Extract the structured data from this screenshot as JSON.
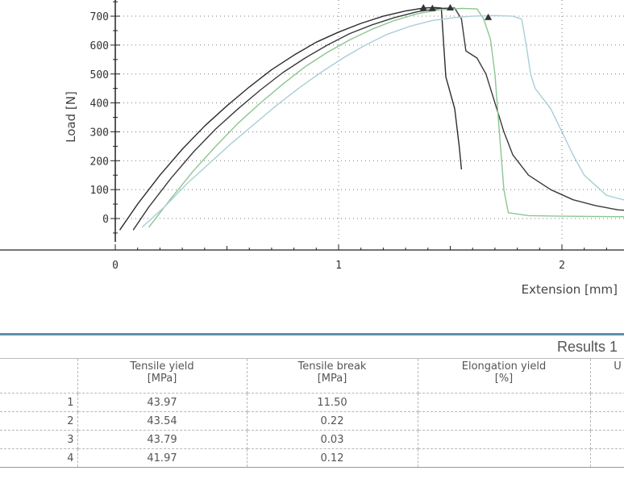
{
  "chart_data": {
    "type": "line",
    "title": "",
    "xlabel": "Extension [mm]",
    "ylabel": "Load [N]",
    "xlim": [
      0,
      2.3
    ],
    "ylim": [
      -90,
      760
    ],
    "x_ticks": [
      "0",
      "1",
      "2"
    ],
    "y_ticks": [
      "0",
      "100",
      "200",
      "300",
      "400",
      "500",
      "600",
      "700"
    ],
    "grid": true,
    "series": [
      {
        "name": "1",
        "color": "#2c2c2c",
        "points": [
          [
            0.02,
            -40
          ],
          [
            0.1,
            50
          ],
          [
            0.2,
            150
          ],
          [
            0.3,
            240
          ],
          [
            0.4,
            320
          ],
          [
            0.5,
            390
          ],
          [
            0.6,
            455
          ],
          [
            0.7,
            515
          ],
          [
            0.8,
            565
          ],
          [
            0.9,
            610
          ],
          [
            1.0,
            645
          ],
          [
            1.1,
            675
          ],
          [
            1.2,
            700
          ],
          [
            1.3,
            718
          ],
          [
            1.38,
            728
          ],
          [
            1.43,
            730
          ],
          [
            1.46,
            728
          ],
          [
            1.48,
            490
          ],
          [
            1.52,
            380
          ],
          [
            1.54,
            250
          ],
          [
            1.55,
            170
          ]
        ]
      },
      {
        "name": "2",
        "color": "#3a3a3a",
        "points": [
          [
            0.08,
            -40
          ],
          [
            0.15,
            40
          ],
          [
            0.25,
            140
          ],
          [
            0.35,
            230
          ],
          [
            0.45,
            310
          ],
          [
            0.55,
            380
          ],
          [
            0.65,
            445
          ],
          [
            0.75,
            505
          ],
          [
            0.85,
            555
          ],
          [
            0.95,
            600
          ],
          [
            1.05,
            640
          ],
          [
            1.15,
            670
          ],
          [
            1.25,
            695
          ],
          [
            1.35,
            715
          ],
          [
            1.45,
            727
          ],
          [
            1.52,
            728
          ],
          [
            1.55,
            690
          ],
          [
            1.57,
            580
          ],
          [
            1.62,
            555
          ],
          [
            1.66,
            500
          ],
          [
            1.7,
            400
          ],
          [
            1.74,
            300
          ],
          [
            1.78,
            220
          ],
          [
            1.85,
            150
          ],
          [
            1.95,
            100
          ],
          [
            2.05,
            65
          ],
          [
            2.15,
            45
          ],
          [
            2.25,
            30
          ],
          [
            2.3,
            28
          ]
        ]
      },
      {
        "name": "3",
        "color": "#8cc592",
        "points": [
          [
            0.15,
            -30
          ],
          [
            0.25,
            70
          ],
          [
            0.35,
            165
          ],
          [
            0.45,
            250
          ],
          [
            0.55,
            330
          ],
          [
            0.65,
            400
          ],
          [
            0.75,
            465
          ],
          [
            0.85,
            525
          ],
          [
            0.95,
            575
          ],
          [
            1.05,
            618
          ],
          [
            1.15,
            655
          ],
          [
            1.25,
            685
          ],
          [
            1.35,
            708
          ],
          [
            1.45,
            722
          ],
          [
            1.55,
            727
          ],
          [
            1.62,
            725
          ],
          [
            1.65,
            690
          ],
          [
            1.68,
            620
          ],
          [
            1.7,
            500
          ],
          [
            1.72,
            300
          ],
          [
            1.74,
            100
          ],
          [
            1.76,
            20
          ],
          [
            1.85,
            10
          ],
          [
            2.0,
            8
          ],
          [
            2.3,
            6
          ]
        ]
      },
      {
        "name": "4",
        "color": "#a9cfd6",
        "points": [
          [
            0.12,
            -30
          ],
          [
            0.22,
            40
          ],
          [
            0.32,
            120
          ],
          [
            0.42,
            190
          ],
          [
            0.52,
            260
          ],
          [
            0.62,
            325
          ],
          [
            0.72,
            390
          ],
          [
            0.82,
            450
          ],
          [
            0.92,
            505
          ],
          [
            1.02,
            555
          ],
          [
            1.12,
            600
          ],
          [
            1.22,
            638
          ],
          [
            1.32,
            665
          ],
          [
            1.42,
            685
          ],
          [
            1.52,
            695
          ],
          [
            1.6,
            700
          ],
          [
            1.7,
            702
          ],
          [
            1.78,
            700
          ],
          [
            1.82,
            690
          ],
          [
            1.84,
            600
          ],
          [
            1.86,
            500
          ],
          [
            1.88,
            450
          ],
          [
            1.95,
            380
          ],
          [
            2.0,
            300
          ],
          [
            2.05,
            220
          ],
          [
            2.1,
            150
          ],
          [
            2.2,
            80
          ],
          [
            2.3,
            60
          ]
        ]
      }
    ],
    "markers": [
      {
        "x": 1.38,
        "y": 728,
        "color": "#333333"
      },
      {
        "x": 1.42,
        "y": 726,
        "color": "#333333"
      },
      {
        "x": 1.5,
        "y": 728,
        "color": "#333333"
      },
      {
        "x": 1.67,
        "y": 695,
        "color": "#333333"
      }
    ]
  },
  "results": {
    "title": "Results 1",
    "columns": [
      {
        "name": "Tensile yield",
        "unit": "[MPa]"
      },
      {
        "name": "Tensile break",
        "unit": "[MPa]"
      },
      {
        "name": "Elongation yield",
        "unit": "[%]"
      },
      {
        "name": "U",
        "unit": ""
      }
    ],
    "rows": [
      {
        "n": "1",
        "yield": "43.97",
        "break": "11.50"
      },
      {
        "n": "2",
        "yield": "43.54",
        "break": "0.22"
      },
      {
        "n": "3",
        "yield": "43.79",
        "break": "0.03"
      },
      {
        "n": "4",
        "yield": "41.97",
        "break": "0.12"
      }
    ]
  }
}
